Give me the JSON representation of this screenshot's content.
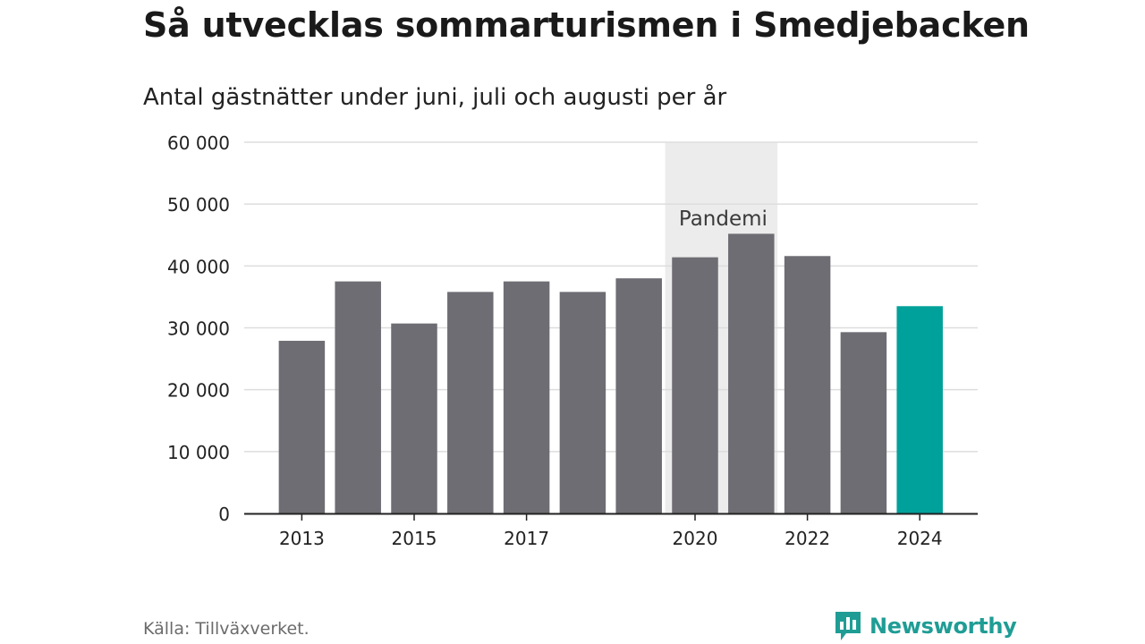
{
  "header": {
    "title": "Så utvecklas sommarturismen i Smedjebacken",
    "subtitle": "Antal gästnätter under juni, juli och augusti per år"
  },
  "footer": {
    "source": "Källa: Tillväxverket.",
    "brand": "Newsworthy",
    "brand_icon": "newsworthy-chart-logo-icon"
  },
  "colors": {
    "bar": "#6e6d73",
    "highlight": "#00a19a",
    "shade": "#ececec",
    "grid": "#dddddd",
    "axis": "#222222"
  },
  "chart_data": {
    "type": "bar",
    "title": "Så utvecklas sommarturismen i Smedjebacken",
    "subtitle": "Antal gästnätter under juni, juli och augusti per år",
    "categories": [
      2013,
      2014,
      2015,
      2016,
      2017,
      2018,
      2019,
      2020,
      2021,
      2022,
      2023,
      2024
    ],
    "values": [
      27900,
      37500,
      30700,
      35800,
      37500,
      35800,
      38000,
      41400,
      45200,
      41600,
      29300,
      33500
    ],
    "x_tick_labels": [
      "2013",
      "2015",
      "2017",
      "2020",
      "2022",
      "2024"
    ],
    "highlight_category": 2024,
    "ylim": [
      0,
      60000
    ],
    "y_ticks": [
      0,
      10000,
      20000,
      30000,
      40000,
      50000,
      60000
    ],
    "y_tick_labels": [
      "0",
      "10 000",
      "20 000",
      "30 000",
      "40 000",
      "50 000",
      "60 000"
    ],
    "grid": true,
    "annotations": [
      {
        "label": "Pandemi",
        "type": "shaded-range",
        "from": 2020,
        "to": 2021
      }
    ]
  }
}
